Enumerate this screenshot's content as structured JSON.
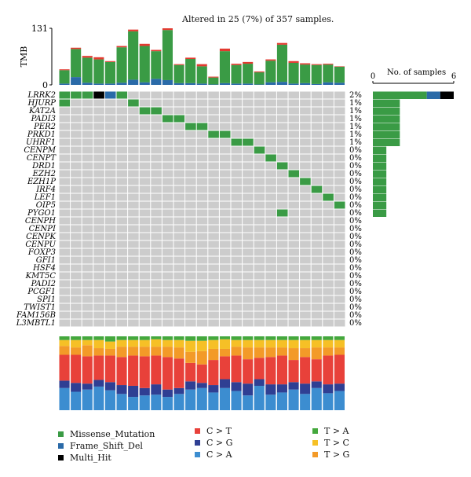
{
  "title": "Altered in 25 (7%) of 357 samples.",
  "chart_data": {
    "type": "oncoplot",
    "colors": {
      "Missense_Mutation": "#3a9b45",
      "Frame_Shift_Del": "#2a6aa8",
      "Multi_Hit": "#000000",
      "none": "#cccccc",
      "C>T": "#e8413a",
      "C>G": "#2f3f93",
      "C>A": "#3c8dd0",
      "T>A": "#44a83d",
      "T>C": "#f6c026",
      "T>G": "#f39a28"
    },
    "tmb": {
      "ylabel": "TMB",
      "ylim": [
        0,
        131
      ],
      "ticks": [
        "0",
        "131"
      ],
      "values": [
        36,
        86,
        67,
        64,
        55,
        90,
        128,
        95,
        81,
        131,
        48,
        63,
        48,
        19,
        84,
        49,
        53,
        31,
        59,
        97,
        55,
        50,
        48,
        49,
        43
      ],
      "frameshift": [
        3,
        18,
        5,
        3,
        3,
        5,
        12,
        6,
        14,
        11,
        4,
        4,
        3,
        1,
        4,
        3,
        3,
        1,
        6,
        7,
        3,
        4,
        2,
        6,
        5
      ],
      "other": [
        2,
        3,
        4,
        5,
        2,
        3,
        4,
        5,
        3,
        4,
        2,
        3,
        5,
        2,
        6,
        3,
        4,
        2,
        3,
        4,
        4,
        3,
        2,
        2,
        1
      ]
    },
    "genes": [
      "LRRK2",
      "HJURP",
      "KAT2A",
      "PADI3",
      "PER2",
      "PRKD1",
      "UHRF1",
      "CENPM",
      "CENPT",
      "DRD1",
      "EZH2",
      "EZH1P",
      "IRF4",
      "LEF1",
      "OIP5",
      "PYGO1",
      "CENPH",
      "CENPI",
      "CENPK",
      "CENPU",
      "FOXP3",
      "GFI1",
      "HSF4",
      "KMT5C",
      "PADI2",
      "PCGF1",
      "SPI1",
      "TWIST1",
      "FAM156B",
      "L3MBTL1"
    ],
    "percents": [
      "2%",
      "1%",
      "1%",
      "1%",
      "1%",
      "1%",
      "1%",
      "0%",
      "0%",
      "0%",
      "0%",
      "0%",
      "0%",
      "0%",
      "0%",
      "0%",
      "0%",
      "0%",
      "0%",
      "0%",
      "0%",
      "0%",
      "0%",
      "0%",
      "0%",
      "0%",
      "0%",
      "0%",
      "0%",
      "0%"
    ],
    "mutations": [
      {
        "gene": "LRRK2",
        "sample": 0,
        "type": "Missense_Mutation"
      },
      {
        "gene": "LRRK2",
        "sample": 1,
        "type": "Missense_Mutation"
      },
      {
        "gene": "LRRK2",
        "sample": 2,
        "type": "Missense_Mutation"
      },
      {
        "gene": "LRRK2",
        "sample": 3,
        "type": "Multi_Hit"
      },
      {
        "gene": "LRRK2",
        "sample": 4,
        "type": "Frame_Shift_Del"
      },
      {
        "gene": "LRRK2",
        "sample": 5,
        "type": "Missense_Mutation"
      },
      {
        "gene": "HJURP",
        "sample": 0,
        "type": "Missense_Mutation"
      },
      {
        "gene": "HJURP",
        "sample": 6,
        "type": "Missense_Mutation"
      },
      {
        "gene": "KAT2A",
        "sample": 7,
        "type": "Missense_Mutation"
      },
      {
        "gene": "KAT2A",
        "sample": 8,
        "type": "Missense_Mutation"
      },
      {
        "gene": "PADI3",
        "sample": 9,
        "type": "Missense_Mutation"
      },
      {
        "gene": "PADI3",
        "sample": 10,
        "type": "Missense_Mutation"
      },
      {
        "gene": "PER2",
        "sample": 11,
        "type": "Missense_Mutation"
      },
      {
        "gene": "PER2",
        "sample": 12,
        "type": "Missense_Mutation"
      },
      {
        "gene": "PRKD1",
        "sample": 13,
        "type": "Missense_Mutation"
      },
      {
        "gene": "PRKD1",
        "sample": 14,
        "type": "Missense_Mutation"
      },
      {
        "gene": "UHRF1",
        "sample": 15,
        "type": "Missense_Mutation"
      },
      {
        "gene": "UHRF1",
        "sample": 16,
        "type": "Missense_Mutation"
      },
      {
        "gene": "CENPM",
        "sample": 17,
        "type": "Missense_Mutation"
      },
      {
        "gene": "CENPT",
        "sample": 18,
        "type": "Missense_Mutation"
      },
      {
        "gene": "DRD1",
        "sample": 19,
        "type": "Missense_Mutation"
      },
      {
        "gene": "EZH2",
        "sample": 20,
        "type": "Missense_Mutation"
      },
      {
        "gene": "EZH1P",
        "sample": 21,
        "type": "Missense_Mutation"
      },
      {
        "gene": "IRF4",
        "sample": 22,
        "type": "Missense_Mutation"
      },
      {
        "gene": "LEF1",
        "sample": 23,
        "type": "Missense_Mutation"
      },
      {
        "gene": "OIP5",
        "sample": 24,
        "type": "Missense_Mutation"
      },
      {
        "gene": "PYGO1",
        "sample": 19,
        "type": "Missense_Mutation"
      }
    ],
    "side_bar": {
      "title": "No. of samples",
      "xlim": [
        0,
        6
      ],
      "ticks": [
        "0",
        "6"
      ],
      "values": [
        {
          "gene": "LRRK2",
          "missense": 4,
          "frameshift": 1,
          "multi": 1
        },
        {
          "gene": "HJURP",
          "missense": 2
        },
        {
          "gene": "KAT2A",
          "missense": 2
        },
        {
          "gene": "PADI3",
          "missense": 2
        },
        {
          "gene": "PER2",
          "missense": 2
        },
        {
          "gene": "PRKD1",
          "missense": 2
        },
        {
          "gene": "UHRF1",
          "missense": 2
        },
        {
          "gene": "CENPM",
          "missense": 1
        },
        {
          "gene": "CENPT",
          "missense": 1
        },
        {
          "gene": "DRD1",
          "missense": 1
        },
        {
          "gene": "EZH2",
          "missense": 1
        },
        {
          "gene": "EZH1P",
          "missense": 1
        },
        {
          "gene": "IRF4",
          "missense": 1
        },
        {
          "gene": "LEF1",
          "missense": 1
        },
        {
          "gene": "OIP5",
          "missense": 1
        },
        {
          "gene": "PYGO1",
          "missense": 1
        }
      ]
    },
    "titv": {
      "order": [
        "C>A",
        "C>G",
        "C>T",
        "T>G",
        "T>C",
        "T>A"
      ],
      "fractions": [
        [
          30,
          10,
          35,
          12,
          8,
          5
        ],
        [
          25,
          12,
          38,
          10,
          10,
          5
        ],
        [
          28,
          8,
          37,
          15,
          7,
          5
        ],
        [
          32,
          9,
          33,
          10,
          11,
          5
        ],
        [
          27,
          11,
          36,
          9,
          10,
          7
        ],
        [
          22,
          12,
          38,
          14,
          9,
          5
        ],
        [
          18,
          15,
          41,
          12,
          9,
          5
        ],
        [
          20,
          10,
          43,
          13,
          9,
          5
        ],
        [
          21,
          14,
          39,
          12,
          10,
          4
        ],
        [
          18,
          10,
          44,
          14,
          9,
          5
        ],
        [
          22,
          8,
          40,
          15,
          10,
          5
        ],
        [
          28,
          11,
          25,
          15,
          15,
          6
        ],
        [
          30,
          7,
          25,
          18,
          14,
          6
        ],
        [
          24,
          10,
          34,
          15,
          12,
          5
        ],
        [
          30,
          12,
          31,
          10,
          13,
          4
        ],
        [
          26,
          12,
          36,
          12,
          9,
          5
        ],
        [
          20,
          16,
          33,
          16,
          10,
          5
        ],
        [
          33,
          9,
          29,
          14,
          10,
          5
        ],
        [
          21,
          14,
          37,
          13,
          10,
          5
        ],
        [
          24,
          11,
          39,
          11,
          10,
          5
        ],
        [
          28,
          10,
          30,
          16,
          11,
          5
        ],
        [
          22,
          14,
          36,
          12,
          11,
          5
        ],
        [
          30,
          9,
          30,
          16,
          10,
          5
        ],
        [
          23,
          12,
          39,
          11,
          10,
          5
        ],
        [
          26,
          10,
          39,
          10,
          10,
          5
        ]
      ]
    },
    "legend": {
      "variants": [
        {
          "label": "Missense_Mutation",
          "key": "Missense_Mutation"
        },
        {
          "label": "Frame_Shift_Del",
          "key": "Frame_Shift_Del"
        },
        {
          "label": "Multi_Hit",
          "key": "Multi_Hit"
        }
      ],
      "transitions": [
        {
          "label": "C > T",
          "key": "C>T"
        },
        {
          "label": "C > G",
          "key": "C>G"
        },
        {
          "label": "C > A",
          "key": "C>A"
        }
      ],
      "transversions": [
        {
          "label": "T > A",
          "key": "T>A"
        },
        {
          "label": "T > C",
          "key": "T>C"
        },
        {
          "label": "T > G",
          "key": "T>G"
        }
      ]
    }
  }
}
